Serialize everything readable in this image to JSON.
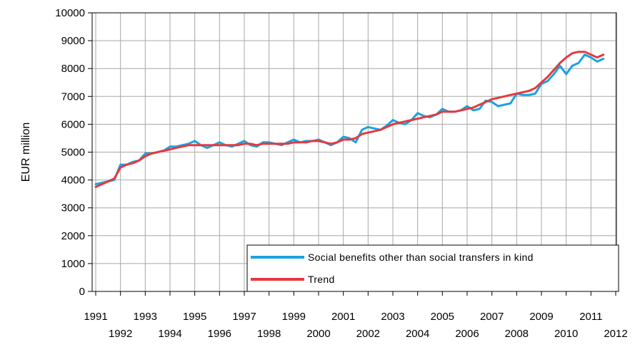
{
  "chart_data": {
    "type": "line",
    "ylabel": "EUR million",
    "ylim": [
      0,
      10000
    ],
    "yticks": [
      0,
      1000,
      2000,
      3000,
      4000,
      5000,
      6000,
      7000,
      8000,
      9000,
      10000
    ],
    "xlim": [
      1991,
      2012
    ],
    "xticks": [
      1991,
      1992,
      1993,
      1994,
      1995,
      1996,
      1997,
      1998,
      1999,
      2000,
      2001,
      2002,
      2003,
      2004,
      2005,
      2006,
      2007,
      2008,
      2009,
      2010,
      2011,
      2012
    ],
    "grid": true,
    "legend_position": "bottom-right",
    "series": [
      {
        "name": "Social benefits other than social transfers in kind",
        "color": "#1aa3e0",
        "x": [
          1991.0,
          1991.25,
          1991.5,
          1991.75,
          1992.0,
          1992.25,
          1992.5,
          1992.75,
          1993.0,
          1993.25,
          1993.5,
          1993.75,
          1994.0,
          1994.25,
          1994.5,
          1994.75,
          1995.0,
          1995.25,
          1995.5,
          1995.75,
          1996.0,
          1996.25,
          1996.5,
          1996.75,
          1997.0,
          1997.25,
          1997.5,
          1997.75,
          1998.0,
          1998.25,
          1998.5,
          1998.75,
          1999.0,
          1999.25,
          1999.5,
          1999.75,
          2000.0,
          2000.25,
          2000.5,
          2000.75,
          2001.0,
          2001.25,
          2001.5,
          2001.75,
          2002.0,
          2002.25,
          2002.5,
          2002.75,
          2003.0,
          2003.25,
          2003.5,
          2003.75,
          2004.0,
          2004.25,
          2004.5,
          2004.75,
          2005.0,
          2005.25,
          2005.5,
          2005.75,
          2006.0,
          2006.25,
          2006.5,
          2006.75,
          2007.0,
          2007.25,
          2007.5,
          2007.75,
          2008.0,
          2008.25,
          2008.5,
          2008.75,
          2009.0,
          2009.25,
          2009.5,
          2009.75,
          2010.0,
          2010.25,
          2010.5,
          2010.75,
          2011.0,
          2011.25,
          2011.5
        ],
        "values": [
          3850,
          3900,
          3950,
          4000,
          4550,
          4550,
          4650,
          4700,
          4950,
          4950,
          5000,
          5050,
          5200,
          5200,
          5250,
          5300,
          5400,
          5250,
          5150,
          5250,
          5350,
          5250,
          5200,
          5300,
          5400,
          5250,
          5200,
          5350,
          5350,
          5300,
          5250,
          5350,
          5450,
          5350,
          5400,
          5400,
          5450,
          5350,
          5250,
          5350,
          5550,
          5500,
          5350,
          5800,
          5900,
          5850,
          5800,
          5950,
          6150,
          6050,
          6000,
          6150,
          6400,
          6300,
          6250,
          6350,
          6550,
          6450,
          6450,
          6500,
          6650,
          6500,
          6550,
          6850,
          6800,
          6650,
          6700,
          6750,
          7100,
          7050,
          7050,
          7100,
          7450,
          7550,
          7800,
          8100,
          7800,
          8100,
          8200,
          8500,
          8400,
          8250,
          8350
        ]
      },
      {
        "name": "Trend",
        "color": "#e5393f",
        "x": [
          1991.0,
          1991.25,
          1991.5,
          1991.75,
          1992.0,
          1992.25,
          1992.5,
          1992.75,
          1993.0,
          1993.25,
          1993.5,
          1993.75,
          1994.0,
          1994.25,
          1994.5,
          1994.75,
          1995.0,
          1995.25,
          1995.5,
          1995.75,
          1996.0,
          1996.25,
          1996.5,
          1996.75,
          1997.0,
          1997.25,
          1997.5,
          1997.75,
          1998.0,
          1998.25,
          1998.5,
          1998.75,
          1999.0,
          1999.25,
          1999.5,
          1999.75,
          2000.0,
          2000.25,
          2000.5,
          2000.75,
          2001.0,
          2001.25,
          2001.5,
          2001.75,
          2002.0,
          2002.25,
          2002.5,
          2002.75,
          2003.0,
          2003.25,
          2003.5,
          2003.75,
          2004.0,
          2004.25,
          2004.5,
          2004.75,
          2005.0,
          2005.25,
          2005.5,
          2005.75,
          2006.0,
          2006.25,
          2006.5,
          2006.75,
          2007.0,
          2007.25,
          2007.5,
          2007.75,
          2008.0,
          2008.25,
          2008.5,
          2008.75,
          2009.0,
          2009.25,
          2009.5,
          2009.75,
          2010.0,
          2010.25,
          2010.5,
          2010.75,
          2011.0,
          2011.25,
          2011.5
        ],
        "values": [
          3750,
          3850,
          3950,
          4050,
          4450,
          4550,
          4600,
          4700,
          4850,
          4950,
          5000,
          5050,
          5100,
          5150,
          5200,
          5250,
          5250,
          5250,
          5250,
          5250,
          5250,
          5250,
          5250,
          5250,
          5300,
          5300,
          5250,
          5300,
          5300,
          5300,
          5300,
          5300,
          5350,
          5350,
          5350,
          5400,
          5400,
          5350,
          5300,
          5350,
          5450,
          5450,
          5500,
          5650,
          5700,
          5750,
          5800,
          5900,
          6000,
          6050,
          6100,
          6150,
          6200,
          6250,
          6300,
          6350,
          6450,
          6450,
          6450,
          6500,
          6550,
          6600,
          6700,
          6800,
          6900,
          6950,
          7000,
          7050,
          7100,
          7150,
          7200,
          7300,
          7500,
          7700,
          7950,
          8200,
          8400,
          8550,
          8600,
          8600,
          8500,
          8400,
          8500
        ]
      }
    ]
  }
}
